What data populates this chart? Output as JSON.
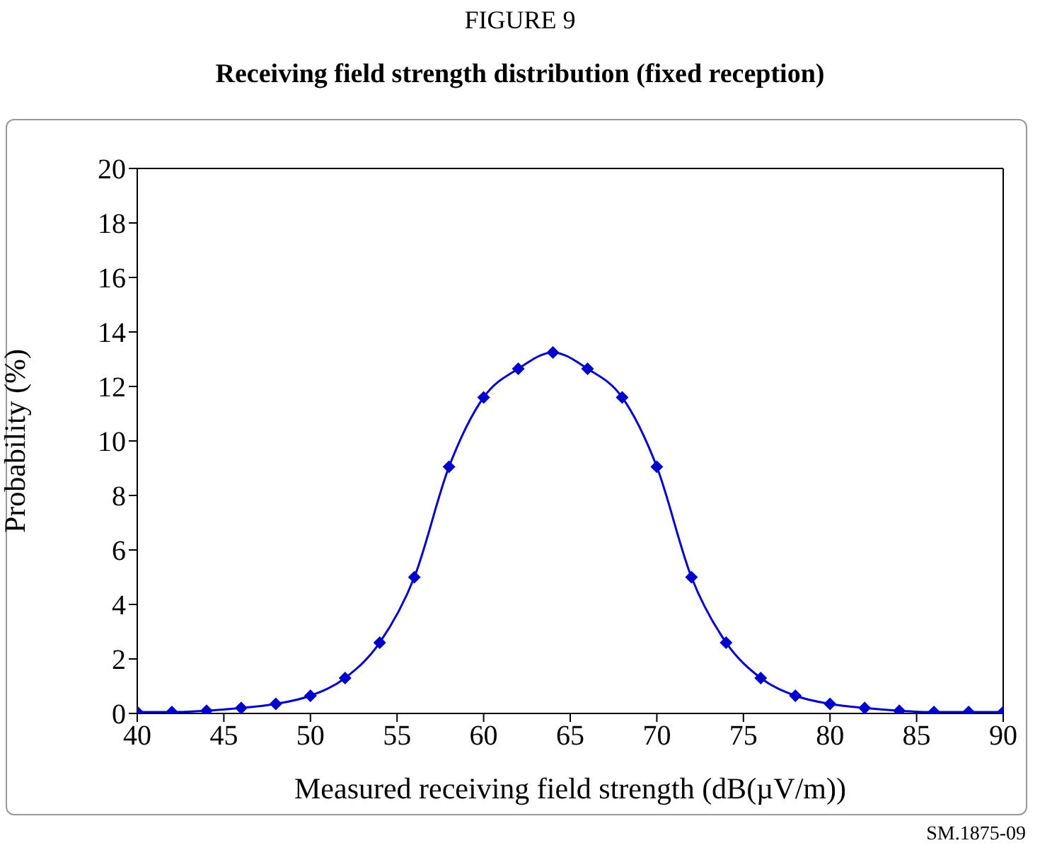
{
  "chart_data": {
    "type": "line",
    "title": "FIGURE 9",
    "subtitle": "Receiving field strength distribution (fixed reception)",
    "xlabel": "Measured receiving field strength (dB(µV/m))",
    "ylabel": "Probability (%)",
    "annotations": [
      "SM.1875-09"
    ],
    "x": [
      40,
      42,
      44,
      46,
      48,
      50,
      52,
      54,
      56,
      58,
      60,
      62,
      64,
      66,
      68,
      70,
      72,
      74,
      76,
      78,
      80,
      82,
      84,
      86,
      88,
      90
    ],
    "series": [
      {
        "color": "#0000cc",
        "values": [
          0.05,
          0.05,
          0.1,
          0.2,
          0.35,
          0.65,
          1.3,
          2.6,
          5.0,
          9.05,
          11.6,
          12.65,
          13.25,
          12.65,
          11.6,
          9.05,
          5.0,
          2.6,
          1.3,
          0.65,
          0.35,
          0.2,
          0.1,
          0.05,
          0.05,
          0.05
        ]
      }
    ],
    "xlim": [
      40,
      90
    ],
    "xticks": [
      40,
      45,
      50,
      55,
      60,
      65,
      70,
      75,
      80,
      85,
      90
    ],
    "ylim": [
      0,
      20
    ],
    "yticks": [
      0,
      2,
      4,
      6,
      8,
      10,
      12,
      14,
      16,
      18,
      20
    ],
    "grid": false,
    "legend": false,
    "marker": "diamond",
    "line_style": "solid"
  }
}
